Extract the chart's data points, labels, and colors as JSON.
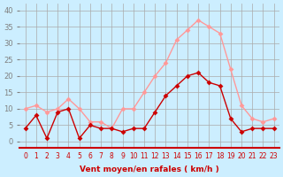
{
  "hours": [
    0,
    1,
    2,
    3,
    4,
    5,
    6,
    7,
    8,
    9,
    10,
    11,
    12,
    13,
    14,
    15,
    16,
    17,
    18,
    19,
    20,
    21,
    22,
    23
  ],
  "vent_moyen": [
    4,
    8,
    1,
    9,
    10,
    1,
    5,
    4,
    4,
    3,
    4,
    4,
    9,
    14,
    17,
    20,
    21,
    18,
    17,
    7,
    3,
    4,
    4,
    4
  ],
  "rafales": [
    10,
    11,
    9,
    10,
    13,
    10,
    6,
    6,
    4,
    10,
    10,
    15,
    20,
    24,
    31,
    34,
    37,
    35,
    33,
    22,
    11,
    7,
    6,
    7
  ],
  "xlabel": "Vent moyen/en rafales ( km/h )",
  "ylim": [
    -2,
    42
  ],
  "yticks": [
    0,
    5,
    10,
    15,
    20,
    25,
    30,
    35,
    40
  ],
  "color_moyen": "#cc0000",
  "color_rafales": "#ff9999",
  "bg_color": "#cceeff",
  "grid_color": "#aaaaaa",
  "marker": "D",
  "markersize": 3
}
